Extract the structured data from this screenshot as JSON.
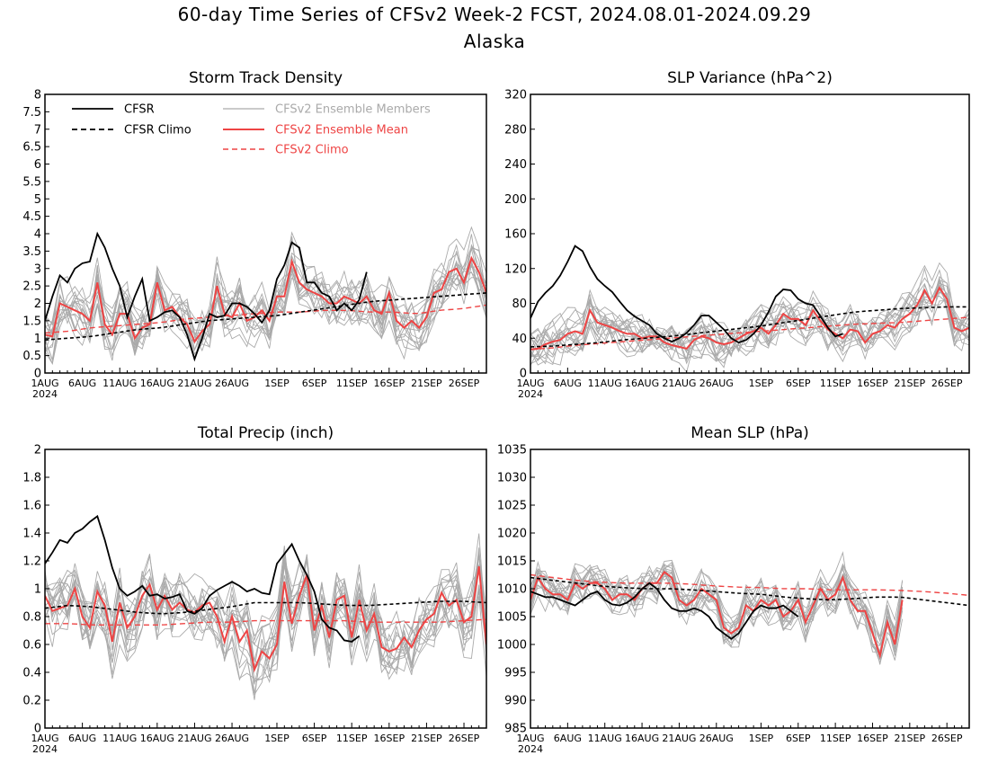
{
  "figure": {
    "title": "60-day Time Series of CFSv2 Week-2 FCST, 2024.08.01-2024.09.29",
    "subtitle": "Alaska"
  },
  "legend": {
    "cfsr": "CFSR",
    "cfsr_climo": "CFSR Climo",
    "members": "CFSv2 Ensemble Members",
    "ens_mean": "CFSv2 Ensemble Mean",
    "cfsv2_climo": "CFSv2 Climo"
  },
  "colors": {
    "cfsr": "#000000",
    "members": "#aaaaaa",
    "ens_mean": "#ee4444",
    "cfsv2_climo": "#ee4444"
  },
  "x_axis": {
    "tick_labels": [
      "1AUG",
      "6AUG",
      "11AUG",
      "16AUG",
      "21AUG",
      "26AUG",
      "1SEP",
      "6SEP",
      "11SEP",
      "16SEP",
      "21SEP",
      "26SEP"
    ],
    "tick_days": [
      0,
      5,
      10,
      15,
      20,
      25,
      31,
      36,
      41,
      46,
      51,
      56
    ],
    "year_label": "2024",
    "n_days": 60
  },
  "chart_data": [
    {
      "type": "line",
      "title": "Storm Track Density",
      "ylim": [
        0,
        8
      ],
      "yticks": [
        "0",
        "0.5",
        "1",
        "1.5",
        "2",
        "2.5",
        "3",
        "3.5",
        "4",
        "4.5",
        "5",
        "5.5",
        "6",
        "6.5",
        "7",
        "7.5",
        "8"
      ],
      "show_legend": true,
      "series": [
        {
          "name": "CFSR",
          "values": [
            1.5,
            2.2,
            2.8,
            2.6,
            3.0,
            3.15,
            3.2,
            4.0,
            3.6,
            3.0,
            2.5,
            1.6,
            2.2,
            2.7,
            1.5,
            1.6,
            1.75,
            1.8,
            1.6,
            1.1,
            0.4,
            1.0,
            1.7,
            1.6,
            1.65,
            2.0,
            2.0,
            1.9,
            1.7,
            1.45,
            1.8,
            2.7,
            3.1,
            3.75,
            3.6,
            2.6,
            2.6,
            2.3,
            2.2,
            1.8,
            2.0,
            1.8,
            2.1,
            2.9
          ]
        },
        {
          "name": "CFSR Climo",
          "values": [
            0.95,
            1.0,
            1.05,
            1.15,
            1.25,
            1.3,
            1.4,
            1.5,
            1.55,
            1.6,
            1.65,
            1.75,
            1.85,
            1.95,
            2.05,
            2.1,
            2.15,
            2.2,
            2.25,
            2.3
          ]
        },
        {
          "name": "CFSv2 Ensemble Mean",
          "values": [
            1.1,
            1.05,
            2.0,
            1.9,
            1.8,
            1.7,
            1.5,
            2.6,
            1.4,
            1.1,
            1.7,
            1.7,
            1.0,
            1.3,
            1.4,
            2.6,
            1.8,
            1.9,
            1.6,
            1.4,
            0.9,
            1.2,
            1.4,
            2.5,
            1.7,
            1.6,
            2.0,
            1.5,
            1.6,
            1.8,
            1.5,
            2.2,
            2.2,
            3.2,
            2.6,
            2.4,
            2.3,
            2.2,
            2.0,
            2.0,
            2.2,
            2.1,
            2.0,
            2.2,
            1.8,
            1.7,
            2.3,
            1.5,
            1.3,
            1.5,
            1.3,
            1.6,
            2.3,
            2.4,
            2.9,
            3.0,
            2.6,
            3.3,
            2.9,
            2.3
          ]
        },
        {
          "name": "CFSv2 Climo",
          "values": [
            1.15,
            1.2,
            1.3,
            1.35,
            1.4,
            1.45,
            1.55,
            1.6,
            1.65,
            1.7,
            1.75,
            1.75,
            1.8,
            1.8,
            1.75,
            1.75,
            1.7,
            1.8,
            1.85,
            1.95
          ]
        }
      ],
      "member_spread": 0.9
    },
    {
      "type": "line",
      "title": "SLP Variance (hPa^2)",
      "ylim": [
        0,
        320
      ],
      "yticks": [
        "0",
        "40",
        "80",
        "120",
        "160",
        "200",
        "240",
        "280",
        "320"
      ],
      "show_legend": false,
      "series": [
        {
          "name": "CFSR",
          "values": [
            63,
            82,
            92,
            100,
            112,
            128,
            146,
            140,
            122,
            108,
            100,
            93,
            82,
            72,
            65,
            60,
            55,
            45,
            40,
            36,
            40,
            46,
            55,
            66,
            66,
            58,
            50,
            40,
            35,
            38,
            45,
            55,
            70,
            88,
            96,
            95,
            85,
            80,
            78,
            65,
            52,
            42,
            45
          ]
        },
        {
          "name": "CFSR Climo",
          "values": [
            30,
            31,
            33,
            35,
            38,
            40,
            42,
            45,
            48,
            51,
            54,
            58,
            62,
            66,
            70,
            72,
            74,
            75,
            76,
            76
          ]
        },
        {
          "name": "CFSv2 Ensemble Mean",
          "values": [
            27,
            28,
            33,
            36,
            38,
            45,
            48,
            45,
            72,
            58,
            55,
            52,
            48,
            45,
            45,
            40,
            42,
            42,
            35,
            32,
            30,
            28,
            38,
            42,
            40,
            35,
            33,
            35,
            40,
            45,
            48,
            52,
            45,
            55,
            68,
            62,
            62,
            55,
            72,
            60,
            50,
            45,
            40,
            50,
            48,
            35,
            45,
            48,
            55,
            52,
            62,
            68,
            78,
            95,
            80,
            98,
            85,
            52,
            48,
            52
          ]
        },
        {
          "name": "CFSv2 Climo",
          "values": [
            27,
            29,
            32,
            34,
            36,
            38,
            40,
            42,
            44,
            46,
            48,
            50,
            52,
            54,
            56,
            57,
            58,
            60,
            62,
            64
          ]
        }
      ],
      "member_spread": 28
    },
    {
      "type": "line",
      "title": "Total Precip (inch)",
      "ylim": [
        0,
        2
      ],
      "yticks": [
        "0",
        "0.2",
        "0.4",
        "0.6",
        "0.8",
        "1",
        "1.2",
        "1.4",
        "1.6",
        "1.8",
        "2"
      ],
      "show_legend": false,
      "series": [
        {
          "name": "CFSR",
          "values": [
            1.18,
            1.26,
            1.35,
            1.33,
            1.4,
            1.43,
            1.48,
            1.52,
            1.35,
            1.15,
            1.0,
            0.95,
            0.98,
            1.02,
            0.95,
            0.96,
            0.93,
            0.94,
            0.96,
            0.84,
            0.82,
            0.86,
            0.95,
            0.99,
            1.02,
            1.05,
            1.02,
            0.98,
            1.0,
            0.97,
            0.96,
            1.18,
            1.25,
            1.32,
            1.2,
            1.1,
            0.98,
            0.78,
            0.72,
            0.7,
            0.63,
            0.62,
            0.66
          ]
        },
        {
          "name": "CFSR Climo",
          "values": [
            0.86,
            0.88,
            0.87,
            0.85,
            0.83,
            0.82,
            0.83,
            0.85,
            0.87,
            0.9,
            0.9,
            0.9,
            0.89,
            0.88,
            0.88,
            0.89,
            0.9,
            0.91,
            0.91,
            0.9
          ]
        },
        {
          "name": "CFSv2 Ensemble Mean",
          "values": [
            0.95,
            0.84,
            0.86,
            0.88,
            1.0,
            0.8,
            0.72,
            0.98,
            0.88,
            0.62,
            0.9,
            0.72,
            0.8,
            0.95,
            1.03,
            0.85,
            0.95,
            0.85,
            0.9,
            0.85,
            0.83,
            0.88,
            0.9,
            0.8,
            0.62,
            0.8,
            0.62,
            0.7,
            0.42,
            0.55,
            0.5,
            0.6,
            1.05,
            0.75,
            0.95,
            1.1,
            0.7,
            0.88,
            0.65,
            0.92,
            0.95,
            0.65,
            0.92,
            0.7,
            0.82,
            0.58,
            0.55,
            0.57,
            0.65,
            0.58,
            0.7,
            0.78,
            0.82,
            0.97,
            0.88,
            0.92,
            0.76,
            0.8,
            1.16,
            0.6
          ]
        },
        {
          "name": "CFSv2 Climo",
          "values": [
            0.75,
            0.75,
            0.74,
            0.74,
            0.74,
            0.74,
            0.75,
            0.76,
            0.76,
            0.77,
            0.77,
            0.77,
            0.77,
            0.77,
            0.76,
            0.76,
            0.76,
            0.76,
            0.77,
            0.78
          ]
        }
      ],
      "member_spread": 0.28
    },
    {
      "type": "line",
      "title": "Mean SLP (hPa)",
      "ylim": [
        985,
        1035
      ],
      "yticks": [
        "985",
        "990",
        "995",
        "1000",
        "1005",
        "1010",
        "1015",
        "1020",
        "1025",
        "1030",
        "1035"
      ],
      "show_legend": false,
      "series": [
        {
          "name": "CFSR",
          "values": [
            1009.5,
            1009,
            1008.5,
            1008.5,
            1008,
            1007.5,
            1007,
            1008,
            1009,
            1009.5,
            1008,
            1007.2,
            1007,
            1007.5,
            1008.5,
            1010,
            1011,
            1010,
            1008,
            1006.5,
            1006,
            1006,
            1006.5,
            1006,
            1005,
            1003,
            1002,
            1001,
            1002,
            1004,
            1006,
            1007,
            1006.5,
            1006.5,
            1007,
            1006,
            1005
          ]
        },
        {
          "name": "CFSR Climo",
          "values": [
            1012,
            1011.5,
            1011,
            1010.5,
            1010.2,
            1010,
            1010,
            1009.8,
            1009.5,
            1009.2,
            1009,
            1008.5,
            1008.2,
            1008,
            1008.2,
            1008.5,
            1008.5,
            1008,
            1007.5,
            1007
          ]
        },
        {
          "name": "CFSv2 Ensemble Mean",
          "values": [
            1008,
            1012,
            1010,
            1009,
            1009,
            1008,
            1011,
            1010,
            1011,
            1011,
            1010,
            1008,
            1009,
            1009,
            1008,
            1010,
            1011,
            1011,
            1013,
            1012,
            1008,
            1007,
            1008,
            1010,
            1009,
            1008,
            1003,
            1002,
            1003,
            1007,
            1006,
            1008,
            1007,
            1008,
            1005,
            1006,
            1008,
            1004,
            1007,
            1010,
            1008,
            1009,
            1012,
            1008,
            1006,
            1006,
            1002,
            998,
            1004,
            1000,
            1008
          ]
        },
        {
          "name": "CFSv2 Climo",
          "values": [
            1012.5,
            1012,
            1011.5,
            1011.2,
            1011,
            1011,
            1011,
            1010.8,
            1010.5,
            1010.3,
            1010.2,
            1010,
            1010,
            1009.8,
            1009.8,
            1009.8,
            1009.7,
            1009.5,
            1009.2,
            1008.8
          ]
        }
      ],
      "member_spread": 4
    }
  ]
}
